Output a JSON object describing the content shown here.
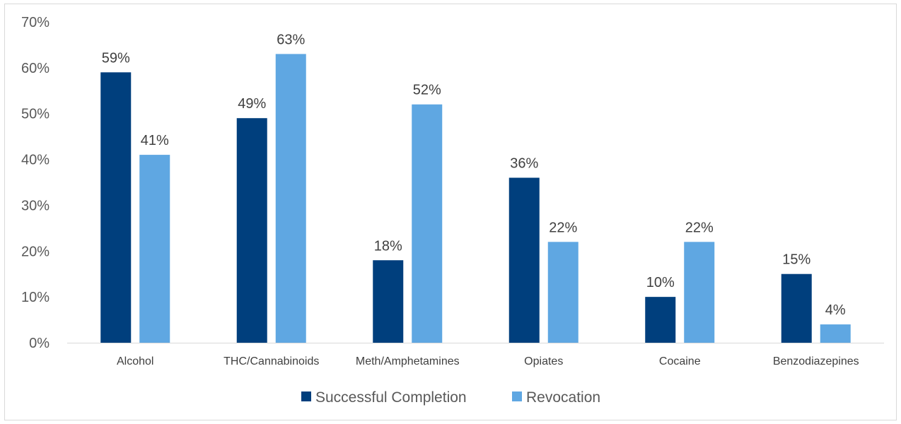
{
  "chart_data": {
    "type": "bar",
    "title": "",
    "xlabel": "",
    "ylabel": "",
    "categories": [
      "Alcohol",
      "THC/Cannabinoids",
      "Meth/Amphetamines",
      "Opiates",
      "Cocaine",
      "Benzodiazepines"
    ],
    "series": [
      {
        "name": "Successful Completion",
        "color": "#003f7d",
        "values": [
          59,
          49,
          18,
          36,
          10,
          15
        ],
        "labels": [
          "59%",
          "49%",
          "18%",
          "36%",
          "10%",
          "15%"
        ]
      },
      {
        "name": "Revocation",
        "color": "#5fa7e2",
        "values": [
          41,
          63,
          52,
          22,
          22,
          4
        ],
        "labels": [
          "41%",
          "63%",
          "52%",
          "22%",
          "22%",
          "4%"
        ]
      }
    ],
    "ylim": [
      0,
      70
    ],
    "yticks": [
      0,
      10,
      20,
      30,
      40,
      50,
      60,
      70
    ],
    "ytick_labels": [
      "0%",
      "10%",
      "20%",
      "30%",
      "40%",
      "50%",
      "60%",
      "70%"
    ],
    "grid": false,
    "legend_position": "bottom",
    "axis_color": "#d9d9d9"
  }
}
